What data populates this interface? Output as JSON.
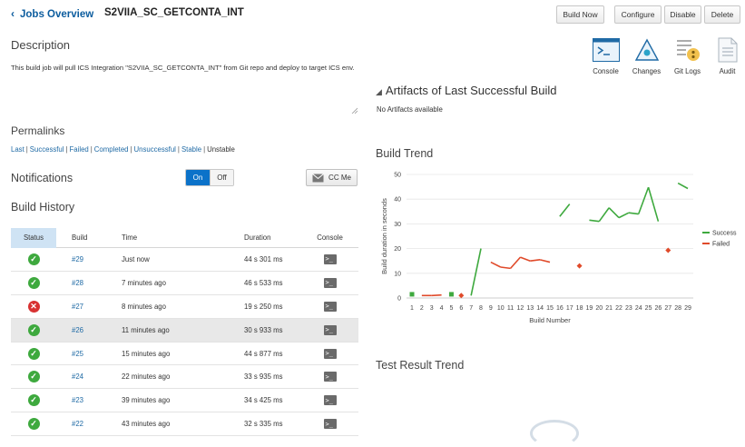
{
  "header": {
    "back_label": "Jobs Overview",
    "job_name": "S2VIIA_SC_GETCONTA_INT",
    "buttons": {
      "build_now": "Build Now",
      "configure": "Configure",
      "disable": "Disable",
      "delete": "Delete"
    }
  },
  "description": {
    "title": "Description",
    "text": "This build job will pull ICS Integration \"S2VIIA_SC_GETCONTA_INT\" from Git repo and deploy to target ICS env."
  },
  "permalinks": {
    "title": "Permalinks",
    "links": [
      "Last",
      "Successful",
      "Failed",
      "Completed",
      "Unsuccessful",
      "Stable"
    ],
    "plain": "Unstable"
  },
  "notifications": {
    "title": "Notifications",
    "on_label": "On",
    "off_label": "Off",
    "ccme_label": "CC Me"
  },
  "build_history": {
    "title": "Build History",
    "columns": {
      "status": "Status",
      "build": "Build",
      "time": "Time",
      "duration": "Duration",
      "console": "Console"
    },
    "rows": [
      {
        "status": "success",
        "build": "#29",
        "time": "Just now",
        "duration": "44 s 301 ms"
      },
      {
        "status": "success",
        "build": "#28",
        "time": "7 minutes ago",
        "duration": "46 s 533 ms"
      },
      {
        "status": "failed",
        "build": "#27",
        "time": "8 minutes ago",
        "duration": "19 s 250 ms"
      },
      {
        "status": "success",
        "build": "#26",
        "time": "11 minutes ago",
        "duration": "30 s 933 ms"
      },
      {
        "status": "success",
        "build": "#25",
        "time": "15 minutes ago",
        "duration": "44 s 877 ms"
      },
      {
        "status": "success",
        "build": "#24",
        "time": "22 minutes ago",
        "duration": "33 s 935 ms"
      },
      {
        "status": "success",
        "build": "#23",
        "time": "39 minutes ago",
        "duration": "34 s 425 ms"
      },
      {
        "status": "success",
        "build": "#22",
        "time": "43 minutes ago",
        "duration": "32 s 335 ms"
      }
    ]
  },
  "tools": [
    {
      "label": "Console",
      "icon": "console-icon"
    },
    {
      "label": "Changes",
      "icon": "changes-icon"
    },
    {
      "label": "Git Logs",
      "icon": "git-logs-icon"
    },
    {
      "label": "Audit",
      "icon": "audit-icon"
    }
  ],
  "artifacts": {
    "title": "Artifacts of Last Successful Build",
    "empty_text": "No Artifacts available"
  },
  "build_trend": {
    "title": "Build Trend"
  },
  "test_trend": {
    "title": "Test Result Trend"
  },
  "colors": {
    "success": "#3ea93e",
    "failed": "#e04a2a",
    "accent": "#0b72c9",
    "link": "#1f6aa5"
  },
  "chart_data": {
    "type": "line",
    "xlabel": "Build Number",
    "ylabel": "Build duration in seconds",
    "ylim": [
      0,
      50
    ],
    "yticks": [
      0,
      10,
      20,
      30,
      40,
      50
    ],
    "categories": [
      "1",
      "2",
      "3",
      "4",
      "5",
      "6",
      "7",
      "8",
      "9",
      "10",
      "11",
      "12",
      "13",
      "14",
      "15",
      "16",
      "17",
      "18",
      "19",
      "20",
      "21",
      "22",
      "23",
      "24",
      "25",
      "26",
      "27",
      "28",
      "29"
    ],
    "legend_position": "right",
    "series": [
      {
        "name": "Success",
        "color": "#3ea93e",
        "values": [
          1.5,
          null,
          null,
          null,
          1.5,
          null,
          1,
          20,
          null,
          null,
          null,
          null,
          null,
          null,
          null,
          33,
          38,
          null,
          31.5,
          31,
          36.5,
          32.5,
          34.5,
          34,
          44.8,
          31,
          null,
          46.5,
          44.3
        ]
      },
      {
        "name": "Failed",
        "color": "#e04a2a",
        "values": [
          null,
          1,
          1,
          1.2,
          null,
          1,
          null,
          null,
          14.5,
          12.5,
          12,
          16.5,
          15,
          15.5,
          14.5,
          null,
          null,
          13,
          null,
          null,
          null,
          null,
          null,
          null,
          null,
          null,
          19.3,
          null,
          null
        ]
      }
    ]
  }
}
